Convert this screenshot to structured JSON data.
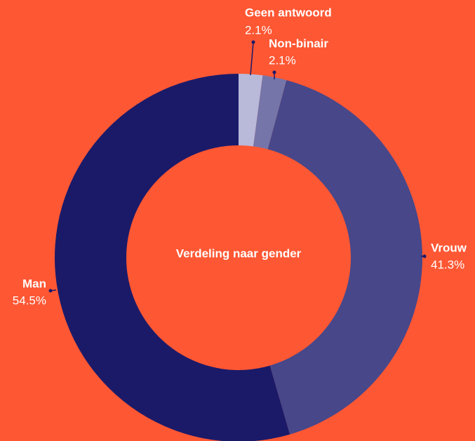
{
  "chart_data": {
    "type": "donut",
    "title": "Verdeling naar gender",
    "categories": [
      "Geen antwoord",
      "Non-binair",
      "Vrouw",
      "Man"
    ],
    "values": [
      2.1,
      2.1,
      41.3,
      54.5
    ],
    "value_labels": [
      "2.1%",
      "2.1%",
      "41.3%",
      "54.5%"
    ],
    "colors": [
      "#b9b9da",
      "#7575a9",
      "#47478a",
      "#1b1a69"
    ]
  }
}
